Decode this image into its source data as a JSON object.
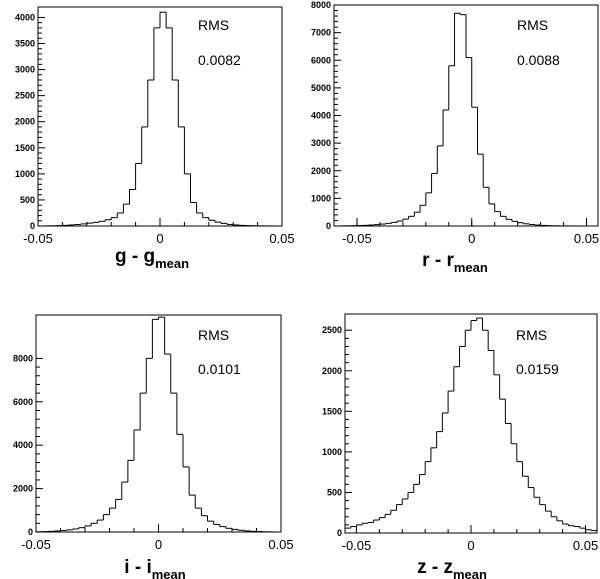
{
  "figure": {
    "title": ""
  },
  "chart_data": [
    {
      "type": "histogram",
      "xlabel": "g - g",
      "xlabel_subscript": "mean",
      "annotation_label": "RMS",
      "annotation_value": "0.0082",
      "xlim": [
        -0.05,
        0.05
      ],
      "ylim": [
        0,
        4200
      ],
      "x_ticks": [
        -0.05,
        0,
        0.05
      ],
      "x_tick_labels": [
        "-0.05",
        "0",
        "0.05"
      ],
      "y_ticks": [
        0,
        500,
        1000,
        1500,
        2000,
        2500,
        3000,
        3500,
        4000
      ],
      "y_tick_labels": [
        "0",
        "500",
        "1000",
        "1500",
        "2000",
        "2500",
        "3000",
        "3500",
        "4000"
      ],
      "bin_edges": [
        -0.05,
        -0.0475,
        -0.045,
        -0.0425,
        -0.04,
        -0.0375,
        -0.035,
        -0.0325,
        -0.03,
        -0.0275,
        -0.025,
        -0.0225,
        -0.02,
        -0.0175,
        -0.015,
        -0.0125,
        -0.01,
        -0.0075,
        -0.005,
        -0.0025,
        0,
        0.0025,
        0.005,
        0.0075,
        0.01,
        0.0125,
        0.015,
        0.0175,
        0.02,
        0.0225,
        0.025,
        0.0275,
        0.03,
        0.0325,
        0.035,
        0.0375,
        0.04,
        0.0425,
        0.045,
        0.0475,
        0.05
      ],
      "counts": [
        0,
        3,
        5,
        8,
        12,
        20,
        28,
        40,
        55,
        70,
        90,
        120,
        160,
        250,
        420,
        700,
        1200,
        1900,
        2800,
        3800,
        4100,
        3800,
        2800,
        1900,
        1000,
        450,
        250,
        160,
        110,
        75,
        50,
        30,
        20,
        12,
        8,
        5,
        3,
        2,
        1,
        0
      ]
    },
    {
      "type": "histogram",
      "xlabel": "r - r",
      "xlabel_subscript": "mean",
      "annotation_label": "RMS",
      "annotation_value": "0.0088",
      "xlim": [
        -0.06,
        0.055
      ],
      "ylim": [
        0,
        8000
      ],
      "x_ticks": [
        -0.05,
        0,
        0.05
      ],
      "x_tick_labels": [
        "-0.05",
        "0",
        "0.05"
      ],
      "y_ticks": [
        0,
        1000,
        2000,
        3000,
        4000,
        5000,
        6000,
        7000,
        8000
      ],
      "y_tick_labels": [
        "0",
        "1000",
        "2000",
        "3000",
        "4000",
        "5000",
        "6000",
        "7000",
        "8000"
      ],
      "bin_edges": [
        -0.0575,
        -0.055,
        -0.0525,
        -0.05,
        -0.0475,
        -0.045,
        -0.0425,
        -0.04,
        -0.0375,
        -0.035,
        -0.0325,
        -0.03,
        -0.0275,
        -0.025,
        -0.0225,
        -0.02,
        -0.0175,
        -0.015,
        -0.0125,
        -0.01,
        -0.0075,
        -0.005,
        -0.0025,
        0,
        0.0025,
        0.005,
        0.0075,
        0.01,
        0.0125,
        0.015,
        0.0175,
        0.02,
        0.0225,
        0.025,
        0.0275,
        0.03,
        0.0325,
        0.035,
        0.0375,
        0.04,
        0.0425,
        0.045,
        0.0475,
        0.05,
        0.0525
      ],
      "counts": [
        5,
        8,
        12,
        18,
        25,
        35,
        50,
        70,
        95,
        130,
        180,
        250,
        350,
        500,
        750,
        1200,
        1900,
        2900,
        4200,
        5800,
        7700,
        7650,
        6100,
        4300,
        2600,
        1400,
        800,
        520,
        350,
        240,
        170,
        120,
        80,
        55,
        35,
        20,
        12,
        8,
        5,
        3,
        2,
        1,
        0,
        0
      ]
    },
    {
      "type": "histogram",
      "xlabel": "i - i",
      "xlabel_subscript": "mean",
      "annotation_label": "RMS",
      "annotation_value": "0.0101",
      "xlim": [
        -0.05,
        0.05
      ],
      "ylim": [
        0,
        10000
      ],
      "x_ticks": [
        -0.05,
        0,
        0.05
      ],
      "x_tick_labels": [
        "-0.05",
        "0",
        "0.05"
      ],
      "y_ticks": [
        0,
        2000,
        4000,
        6000,
        8000
      ],
      "y_tick_labels": [
        "0",
        "2000",
        "4000",
        "6000",
        "8000"
      ],
      "bin_edges": [
        -0.05,
        -0.0475,
        -0.045,
        -0.0425,
        -0.04,
        -0.0375,
        -0.035,
        -0.0325,
        -0.03,
        -0.0275,
        -0.025,
        -0.0225,
        -0.02,
        -0.0175,
        -0.015,
        -0.0125,
        -0.01,
        -0.0075,
        -0.005,
        -0.0025,
        0,
        0.0025,
        0.005,
        0.0075,
        0.01,
        0.0125,
        0.015,
        0.0175,
        0.02,
        0.0225,
        0.025,
        0.0275,
        0.03,
        0.0325,
        0.035,
        0.0375,
        0.04,
        0.0425,
        0.045,
        0.0475,
        0.05
      ],
      "counts": [
        10,
        20,
        30,
        50,
        70,
        100,
        140,
        200,
        280,
        400,
        550,
        800,
        1100,
        1500,
        2300,
        3300,
        4700,
        6400,
        8000,
        9800,
        9900,
        8200,
        6400,
        4500,
        3000,
        1700,
        1100,
        750,
        500,
        350,
        250,
        170,
        120,
        80,
        50,
        30,
        20,
        10,
        5,
        0
      ]
    },
    {
      "type": "histogram",
      "xlabel": "z - z",
      "xlabel_subscript": "mean",
      "annotation_label": "RMS",
      "annotation_value": "0.0159",
      "xlim": [
        -0.055,
        0.055
      ],
      "ylim": [
        0,
        2700
      ],
      "x_ticks": [
        -0.05,
        0,
        0.05
      ],
      "x_tick_labels": [
        "-0.05",
        "0",
        "0.05"
      ],
      "y_ticks": [
        0,
        500,
        1000,
        1500,
        2000,
        2500
      ],
      "y_tick_labels": [
        "0",
        "500",
        "1000",
        "1500",
        "2000",
        "2500"
      ],
      "bin_edges": [
        -0.055,
        -0.0525,
        -0.05,
        -0.0475,
        -0.045,
        -0.0425,
        -0.04,
        -0.0375,
        -0.035,
        -0.0325,
        -0.03,
        -0.0275,
        -0.025,
        -0.0225,
        -0.02,
        -0.0175,
        -0.015,
        -0.0125,
        -0.01,
        -0.0075,
        -0.005,
        -0.0025,
        0,
        0.0025,
        0.005,
        0.0075,
        0.01,
        0.0125,
        0.015,
        0.0175,
        0.02,
        0.0225,
        0.025,
        0.0275,
        0.03,
        0.0325,
        0.035,
        0.0375,
        0.04,
        0.0425,
        0.045,
        0.0475,
        0.05,
        0.0525,
        0.055
      ],
      "counts": [
        60,
        80,
        100,
        120,
        130,
        160,
        190,
        230,
        280,
        350,
        420,
        500,
        600,
        720,
        880,
        1050,
        1250,
        1480,
        1750,
        2050,
        2300,
        2500,
        2620,
        2650,
        2500,
        2250,
        1950,
        1650,
        1350,
        1100,
        880,
        700,
        560,
        440,
        350,
        270,
        200,
        150,
        110,
        90,
        80,
        60,
        40,
        30
      ]
    }
  ]
}
